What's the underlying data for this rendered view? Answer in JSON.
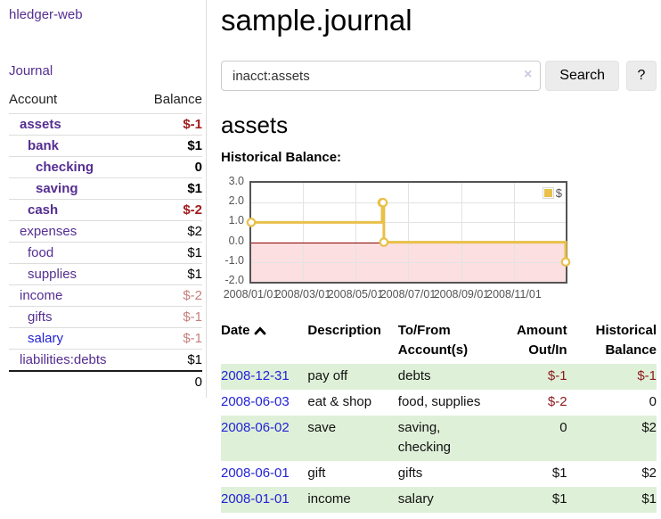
{
  "app": {
    "brand": "hledger-web",
    "nav": {
      "journal": "Journal"
    }
  },
  "sidebar": {
    "headers": {
      "account": "Account",
      "balance": "Balance"
    },
    "rows": [
      {
        "account": "assets",
        "balance": "$-1"
      },
      {
        "account": "bank",
        "balance": "$1"
      },
      {
        "account": "checking",
        "balance": "0"
      },
      {
        "account": "saving",
        "balance": "$1"
      },
      {
        "account": "cash",
        "balance": "$-2"
      },
      {
        "account": "expenses",
        "balance": "$2"
      },
      {
        "account": "food",
        "balance": "$1"
      },
      {
        "account": "supplies",
        "balance": "$1"
      },
      {
        "account": "income",
        "balance": "$-2"
      },
      {
        "account": "gifts",
        "balance": "$-1"
      },
      {
        "account": "salary",
        "balance": "$-1"
      },
      {
        "account": "liabilities:debts",
        "balance": "$1"
      }
    ],
    "total": "0"
  },
  "main": {
    "title": "sample.journal",
    "search": {
      "value": "inacct:assets",
      "clear": "×",
      "submit": "Search",
      "help": "?"
    },
    "heading": "assets",
    "chart_title": "Historical Balance:",
    "register": {
      "headers": {
        "date": "Date",
        "description": "Description",
        "accounts": "To/From Account(s)",
        "amount": "Amount Out/In",
        "balance": "Historical Balance"
      },
      "rows": [
        {
          "date": "2008-12-31",
          "description": "pay off",
          "accounts": "debts",
          "amount": "$-1",
          "balance": "$-1"
        },
        {
          "date": "2008-06-03",
          "description": "eat & shop",
          "accounts": "food, supplies",
          "amount": "$-2",
          "balance": "0"
        },
        {
          "date": "2008-06-02",
          "description": "save",
          "accounts": "saving, checking",
          "amount": "0",
          "balance": "$2"
        },
        {
          "date": "2008-06-01",
          "description": "gift",
          "accounts": "gifts",
          "amount": "$1",
          "balance": "$2"
        },
        {
          "date": "2008-01-01",
          "description": "income",
          "accounts": "salary",
          "amount": "$1",
          "balance": "$1"
        }
      ]
    }
  },
  "colors": {
    "link_purple": "#552e91",
    "link_blue": "#2323d6",
    "negative_strong": "#a11c1c",
    "negative_muted": "#c5807c",
    "table_negative": "#8b1a1d",
    "row_green": "#dff0d8",
    "chart_line": "#e8c04a",
    "chart_negative_fill": "#fbdfe1",
    "chart_zero_line": "#8b0000",
    "axis_text": "#545454"
  },
  "chart_data": {
    "type": "line",
    "step": true,
    "title": "Historical Balance",
    "legend": {
      "label": "$",
      "position": "top-right"
    },
    "series": [
      {
        "name": "$",
        "color": "#e8c04a",
        "points": [
          {
            "x": "2008-01-01",
            "day": 0,
            "y": 1
          },
          {
            "x": "2008-06-01",
            "day": 152,
            "y": 2
          },
          {
            "x": "2008-06-02",
            "day": 153,
            "y": 2
          },
          {
            "x": "2008-06-03",
            "day": 154,
            "y": 0
          },
          {
            "x": "2008-12-31",
            "day": 365,
            "y": -1
          }
        ]
      }
    ],
    "x_domain_days": 365,
    "x_ticks": [
      {
        "label": "2008/01/01",
        "day": 0
      },
      {
        "label": "2008/03/01",
        "day": 60
      },
      {
        "label": "2008/05/01",
        "day": 121
      },
      {
        "label": "2008/07/01",
        "day": 182
      },
      {
        "label": "2008/09/01",
        "day": 244
      },
      {
        "label": "2008/11/01",
        "day": 305
      }
    ],
    "y_ticks": [
      "3.0",
      "2.0",
      "1.0",
      "0.0",
      "-1.0",
      "-2.0"
    ],
    "ylim": [
      -2,
      3
    ],
    "grid": true
  }
}
